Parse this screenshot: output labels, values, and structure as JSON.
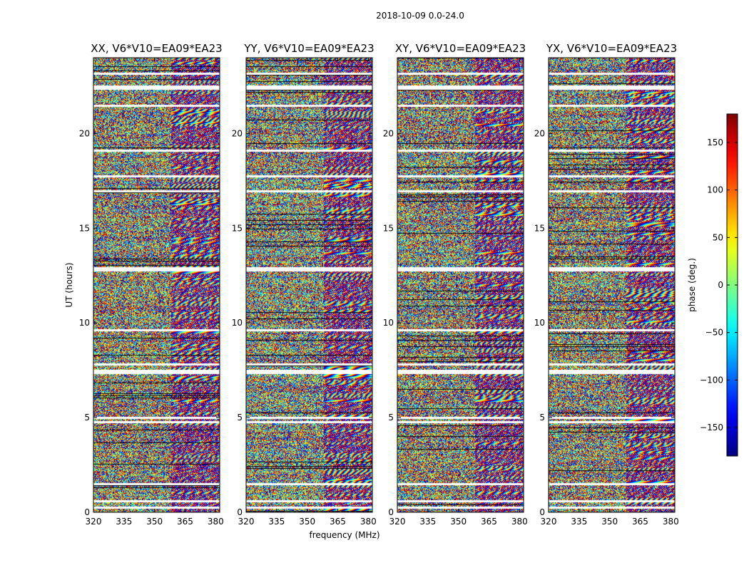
{
  "chart_data": {
    "type": "heatmap",
    "title": "2018-10-09 0.0-24.0",
    "xlabel": "frequency (MHz)",
    "ylabel": "UT (hours)",
    "xlim": [
      320,
      382
    ],
    "ylim": [
      0,
      24
    ],
    "x_ticks": [
      "320",
      "335",
      "350",
      "365",
      "380"
    ],
    "x_tick_values": [
      320,
      335,
      350,
      365,
      380
    ],
    "y_ticks": [
      "0",
      "5",
      "10",
      "15",
      "20"
    ],
    "y_tick_values": [
      0,
      5,
      10,
      15,
      20
    ],
    "panels": [
      {
        "title": "XX, V6*V10=EA09*EA23"
      },
      {
        "title": "YY, V6*V10=EA09*EA23"
      },
      {
        "title": "XY, V6*V10=EA09*EA23"
      },
      {
        "title": "YX, V6*V10=EA09*EA23"
      }
    ],
    "colorbar": {
      "label": "phase (deg.)",
      "range": [
        -180,
        180
      ],
      "ticks": [
        "150",
        "100",
        "50",
        "0",
        "−50",
        "−100",
        "−150"
      ],
      "tick_values": [
        150,
        100,
        50,
        0,
        -50,
        -100,
        -150
      ],
      "colormap": "jet"
    }
  }
}
